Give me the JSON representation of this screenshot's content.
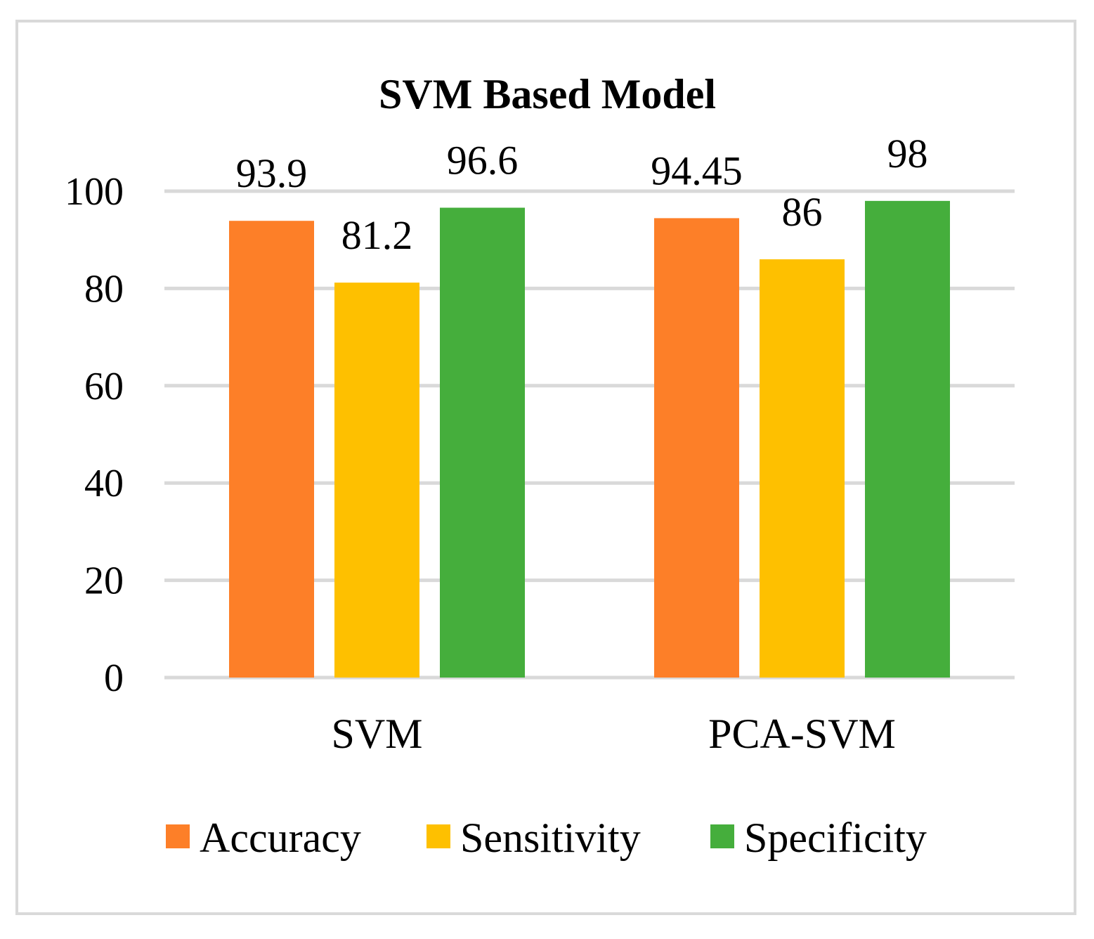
{
  "chart_data": {
    "type": "bar",
    "title": "SVM Based Model",
    "categories": [
      "SVM",
      "PCA-SVM"
    ],
    "series": [
      {
        "name": "Accuracy",
        "color": "#fd7f28",
        "values": [
          93.9,
          94.45
        ],
        "labels": [
          "93.9",
          "94.45"
        ]
      },
      {
        "name": "Sensitivity",
        "color": "#fec000",
        "values": [
          81.2,
          86
        ],
        "labels": [
          "81.2",
          "86"
        ]
      },
      {
        "name": "Specificity",
        "color": "#45ae3c",
        "values": [
          96.6,
          98
        ],
        "labels": [
          "96.6",
          "98"
        ]
      }
    ],
    "ylim": [
      0,
      100
    ],
    "yticks": [
      0,
      20,
      40,
      60,
      80,
      100
    ],
    "ytick_labels": [
      "0",
      "20",
      "40",
      "60",
      "80",
      "100"
    ],
    "grid": true,
    "gridline_color": "#d9d9d9",
    "legend_position": "bottom",
    "xlabel": "",
    "ylabel": ""
  }
}
